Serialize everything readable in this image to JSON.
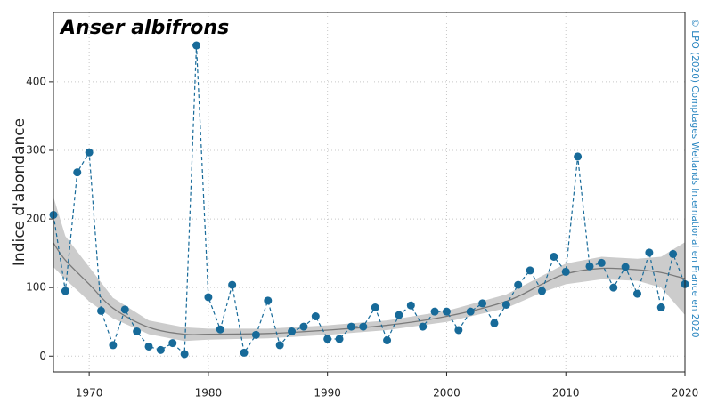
{
  "chart_data": {
    "type": "line",
    "title": "Anser albifrons",
    "ylabel": "Indice d'abondance",
    "credit": "© LPO (2020) Comptages Wetlands International en France en 2020",
    "x": [
      1967,
      1968,
      1969,
      1970,
      1971,
      1972,
      1973,
      1974,
      1975,
      1976,
      1977,
      1978,
      1979,
      1980,
      1981,
      1982,
      1983,
      1984,
      1985,
      1986,
      1987,
      1988,
      1989,
      1990,
      1991,
      1992,
      1993,
      1994,
      1995,
      1996,
      1997,
      1998,
      1999,
      2000,
      2001,
      2002,
      2003,
      2004,
      2005,
      2006,
      2007,
      2008,
      2009,
      2010,
      2011,
      2012,
      2013,
      2014,
      2015,
      2016,
      2017,
      2018,
      2019,
      2020
    ],
    "series": [
      {
        "color": "#176a99",
        "values": [
          206,
          95,
          268,
          297,
          66,
          16,
          68,
          36,
          14,
          9,
          19,
          3,
          453,
          86,
          39,
          104,
          5,
          31,
          81,
          16,
          36,
          43,
          58,
          25,
          25,
          43,
          43,
          71,
          23,
          60,
          74,
          43,
          65,
          65,
          38,
          65,
          77,
          48,
          75,
          104,
          125,
          95,
          145,
          123,
          291,
          131,
          136,
          100,
          130,
          91,
          151,
          71,
          149,
          105
        ]
      }
    ],
    "trend": {
      "color": "#7a7a7a",
      "band_color": "#cccccc",
      "x": [
        1967,
        1968,
        1970,
        1972,
        1975,
        1978,
        1980,
        1985,
        1990,
        1995,
        2000,
        2005,
        2008,
        2010,
        2013,
        2016,
        2018,
        2020
      ],
      "values": [
        165,
        140,
        105,
        70,
        42,
        32,
        32,
        33,
        38,
        45,
        58,
        80,
        105,
        120,
        128,
        126,
        122,
        113
      ],
      "lower": [
        130,
        112,
        80,
        55,
        32,
        22,
        24,
        26,
        31,
        38,
        50,
        70,
        93,
        105,
        112,
        110,
        100,
        60
      ],
      "upper": [
        232,
        175,
        130,
        85,
        52,
        42,
        40,
        40,
        45,
        52,
        66,
        90,
        117,
        135,
        145,
        142,
        145,
        166
      ]
    },
    "xlim": [
      1967,
      2020
    ],
    "xticks": [
      1970,
      1980,
      1990,
      2000,
      2010,
      2020
    ],
    "ylim": [
      -23,
      501
    ],
    "yticks": [
      0,
      100,
      200,
      300,
      400
    ],
    "grid": true
  }
}
